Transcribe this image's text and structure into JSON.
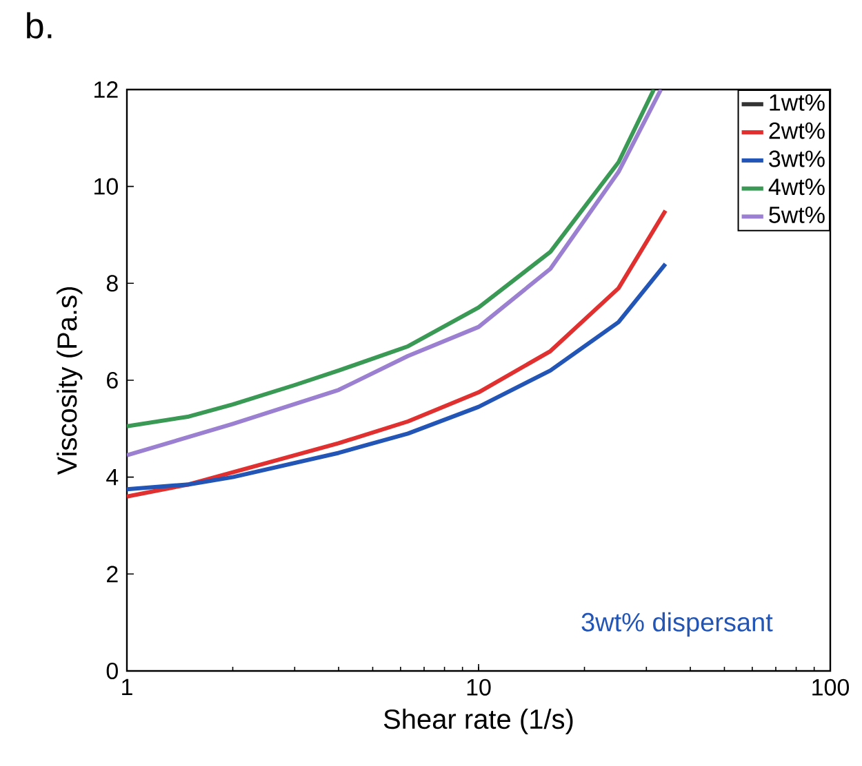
{
  "chart_data": {
    "type": "line",
    "title": "b.",
    "xlabel": "Shear rate (1/s)",
    "ylabel": "Viscosity (Pa.s)",
    "log": "x",
    "xlim": [
      1,
      100
    ],
    "ylim": [
      0,
      12
    ],
    "xticks": [
      1,
      10,
      100
    ],
    "yticks": [
      0,
      2,
      4,
      6,
      8,
      10,
      12
    ],
    "legend": "top right",
    "annotations": [
      "3wt% dispersant"
    ],
    "series": [
      {
        "name": "1wt%",
        "color": "#333333"
      },
      {
        "name": "2wt%",
        "color": "#e03030",
        "x": [
          1,
          1.5,
          2,
          4,
          6.3,
          10,
          16,
          25,
          34
        ],
        "values": [
          3.6,
          3.85,
          4.1,
          4.7,
          5.15,
          5.75,
          6.6,
          7.9,
          9.5
        ]
      },
      {
        "name": "3wt%",
        "color": "#2255b5",
        "x": [
          1,
          1.5,
          2,
          4,
          6.3,
          10,
          16,
          25,
          34
        ],
        "values": [
          3.75,
          3.85,
          4.0,
          4.5,
          4.9,
          5.45,
          6.2,
          7.2,
          8.4
        ]
      },
      {
        "name": "4wt%",
        "color": "#3a9a55",
        "x": [
          1,
          1.5,
          2,
          3,
          4,
          6.3,
          10,
          16,
          25,
          31.5
        ],
        "values": [
          5.05,
          5.25,
          5.5,
          5.9,
          6.2,
          6.7,
          7.5,
          8.65,
          10.5,
          12
        ]
      },
      {
        "name": "5wt%",
        "color": "#9b7fd0",
        "x": [
          1,
          2,
          4,
          6.3,
          10,
          16,
          25,
          33
        ],
        "values": [
          4.45,
          5.1,
          5.8,
          6.5,
          7.1,
          8.3,
          10.3,
          12
        ]
      }
    ]
  }
}
